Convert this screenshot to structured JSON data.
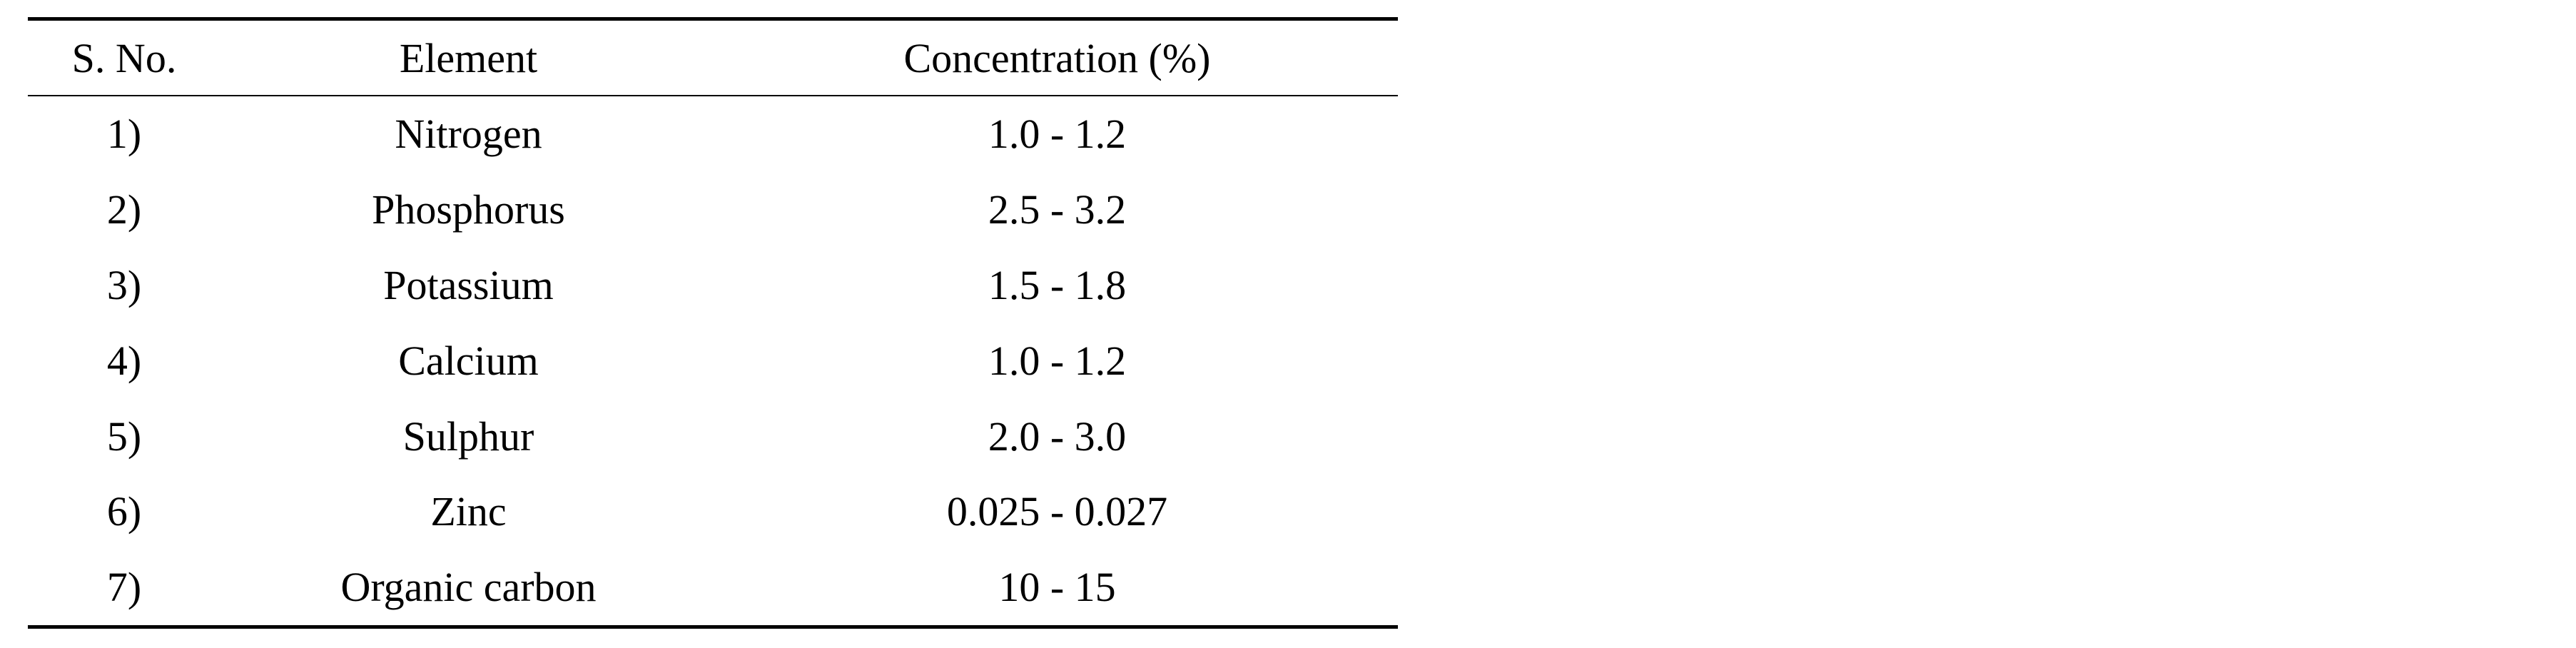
{
  "table": {
    "headers": [
      "S. No.",
      "Element",
      "Concentration (%)"
    ],
    "rows": [
      [
        "1)",
        "Nitrogen",
        "1.0 - 1.2"
      ],
      [
        "2)",
        "Phosphorus",
        "2.5 - 3.2"
      ],
      [
        "3)",
        "Potassium",
        "1.5 - 1.8"
      ],
      [
        "4)",
        "Calcium",
        "1.0 - 1.2"
      ],
      [
        "5)",
        "Sulphur",
        "2.0 - 3.0"
      ],
      [
        "6)",
        "Zinc",
        "0.025 - 0.027"
      ],
      [
        "7)",
        "Organic carbon",
        "10 - 15"
      ]
    ]
  }
}
